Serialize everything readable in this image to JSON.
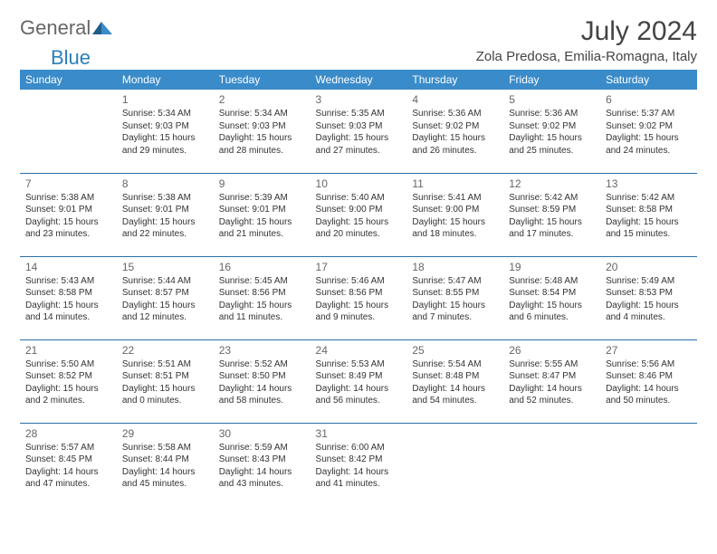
{
  "logo": {
    "text1": "General",
    "text2": "Blue"
  },
  "title": "July 2024",
  "location": "Zola Predosa, Emilia-Romagna, Italy",
  "colors": {
    "header_bg": "#3a8bc9",
    "header_text": "#ffffff",
    "row_border": "#2a6fa8",
    "logo_blue": "#2a7fba",
    "logo_gray": "#666666"
  },
  "dayNames": [
    "Sunday",
    "Monday",
    "Tuesday",
    "Wednesday",
    "Thursday",
    "Friday",
    "Saturday"
  ],
  "weeks": [
    [
      null,
      {
        "n": "1",
        "sr": "Sunrise: 5:34 AM",
        "ss": "Sunset: 9:03 PM",
        "dl1": "Daylight: 15 hours",
        "dl2": "and 29 minutes."
      },
      {
        "n": "2",
        "sr": "Sunrise: 5:34 AM",
        "ss": "Sunset: 9:03 PM",
        "dl1": "Daylight: 15 hours",
        "dl2": "and 28 minutes."
      },
      {
        "n": "3",
        "sr": "Sunrise: 5:35 AM",
        "ss": "Sunset: 9:03 PM",
        "dl1": "Daylight: 15 hours",
        "dl2": "and 27 minutes."
      },
      {
        "n": "4",
        "sr": "Sunrise: 5:36 AM",
        "ss": "Sunset: 9:02 PM",
        "dl1": "Daylight: 15 hours",
        "dl2": "and 26 minutes."
      },
      {
        "n": "5",
        "sr": "Sunrise: 5:36 AM",
        "ss": "Sunset: 9:02 PM",
        "dl1": "Daylight: 15 hours",
        "dl2": "and 25 minutes."
      },
      {
        "n": "6",
        "sr": "Sunrise: 5:37 AM",
        "ss": "Sunset: 9:02 PM",
        "dl1": "Daylight: 15 hours",
        "dl2": "and 24 minutes."
      }
    ],
    [
      {
        "n": "7",
        "sr": "Sunrise: 5:38 AM",
        "ss": "Sunset: 9:01 PM",
        "dl1": "Daylight: 15 hours",
        "dl2": "and 23 minutes."
      },
      {
        "n": "8",
        "sr": "Sunrise: 5:38 AM",
        "ss": "Sunset: 9:01 PM",
        "dl1": "Daylight: 15 hours",
        "dl2": "and 22 minutes."
      },
      {
        "n": "9",
        "sr": "Sunrise: 5:39 AM",
        "ss": "Sunset: 9:01 PM",
        "dl1": "Daylight: 15 hours",
        "dl2": "and 21 minutes."
      },
      {
        "n": "10",
        "sr": "Sunrise: 5:40 AM",
        "ss": "Sunset: 9:00 PM",
        "dl1": "Daylight: 15 hours",
        "dl2": "and 20 minutes."
      },
      {
        "n": "11",
        "sr": "Sunrise: 5:41 AM",
        "ss": "Sunset: 9:00 PM",
        "dl1": "Daylight: 15 hours",
        "dl2": "and 18 minutes."
      },
      {
        "n": "12",
        "sr": "Sunrise: 5:42 AM",
        "ss": "Sunset: 8:59 PM",
        "dl1": "Daylight: 15 hours",
        "dl2": "and 17 minutes."
      },
      {
        "n": "13",
        "sr": "Sunrise: 5:42 AM",
        "ss": "Sunset: 8:58 PM",
        "dl1": "Daylight: 15 hours",
        "dl2": "and 15 minutes."
      }
    ],
    [
      {
        "n": "14",
        "sr": "Sunrise: 5:43 AM",
        "ss": "Sunset: 8:58 PM",
        "dl1": "Daylight: 15 hours",
        "dl2": "and 14 minutes."
      },
      {
        "n": "15",
        "sr": "Sunrise: 5:44 AM",
        "ss": "Sunset: 8:57 PM",
        "dl1": "Daylight: 15 hours",
        "dl2": "and 12 minutes."
      },
      {
        "n": "16",
        "sr": "Sunrise: 5:45 AM",
        "ss": "Sunset: 8:56 PM",
        "dl1": "Daylight: 15 hours",
        "dl2": "and 11 minutes."
      },
      {
        "n": "17",
        "sr": "Sunrise: 5:46 AM",
        "ss": "Sunset: 8:56 PM",
        "dl1": "Daylight: 15 hours",
        "dl2": "and 9 minutes."
      },
      {
        "n": "18",
        "sr": "Sunrise: 5:47 AM",
        "ss": "Sunset: 8:55 PM",
        "dl1": "Daylight: 15 hours",
        "dl2": "and 7 minutes."
      },
      {
        "n": "19",
        "sr": "Sunrise: 5:48 AM",
        "ss": "Sunset: 8:54 PM",
        "dl1": "Daylight: 15 hours",
        "dl2": "and 6 minutes."
      },
      {
        "n": "20",
        "sr": "Sunrise: 5:49 AM",
        "ss": "Sunset: 8:53 PM",
        "dl1": "Daylight: 15 hours",
        "dl2": "and 4 minutes."
      }
    ],
    [
      {
        "n": "21",
        "sr": "Sunrise: 5:50 AM",
        "ss": "Sunset: 8:52 PM",
        "dl1": "Daylight: 15 hours",
        "dl2": "and 2 minutes."
      },
      {
        "n": "22",
        "sr": "Sunrise: 5:51 AM",
        "ss": "Sunset: 8:51 PM",
        "dl1": "Daylight: 15 hours",
        "dl2": "and 0 minutes."
      },
      {
        "n": "23",
        "sr": "Sunrise: 5:52 AM",
        "ss": "Sunset: 8:50 PM",
        "dl1": "Daylight: 14 hours",
        "dl2": "and 58 minutes."
      },
      {
        "n": "24",
        "sr": "Sunrise: 5:53 AM",
        "ss": "Sunset: 8:49 PM",
        "dl1": "Daylight: 14 hours",
        "dl2": "and 56 minutes."
      },
      {
        "n": "25",
        "sr": "Sunrise: 5:54 AM",
        "ss": "Sunset: 8:48 PM",
        "dl1": "Daylight: 14 hours",
        "dl2": "and 54 minutes."
      },
      {
        "n": "26",
        "sr": "Sunrise: 5:55 AM",
        "ss": "Sunset: 8:47 PM",
        "dl1": "Daylight: 14 hours",
        "dl2": "and 52 minutes."
      },
      {
        "n": "27",
        "sr": "Sunrise: 5:56 AM",
        "ss": "Sunset: 8:46 PM",
        "dl1": "Daylight: 14 hours",
        "dl2": "and 50 minutes."
      }
    ],
    [
      {
        "n": "28",
        "sr": "Sunrise: 5:57 AM",
        "ss": "Sunset: 8:45 PM",
        "dl1": "Daylight: 14 hours",
        "dl2": "and 47 minutes."
      },
      {
        "n": "29",
        "sr": "Sunrise: 5:58 AM",
        "ss": "Sunset: 8:44 PM",
        "dl1": "Daylight: 14 hours",
        "dl2": "and 45 minutes."
      },
      {
        "n": "30",
        "sr": "Sunrise: 5:59 AM",
        "ss": "Sunset: 8:43 PM",
        "dl1": "Daylight: 14 hours",
        "dl2": "and 43 minutes."
      },
      {
        "n": "31",
        "sr": "Sunrise: 6:00 AM",
        "ss": "Sunset: 8:42 PM",
        "dl1": "Daylight: 14 hours",
        "dl2": "and 41 minutes."
      },
      null,
      null,
      null
    ]
  ]
}
